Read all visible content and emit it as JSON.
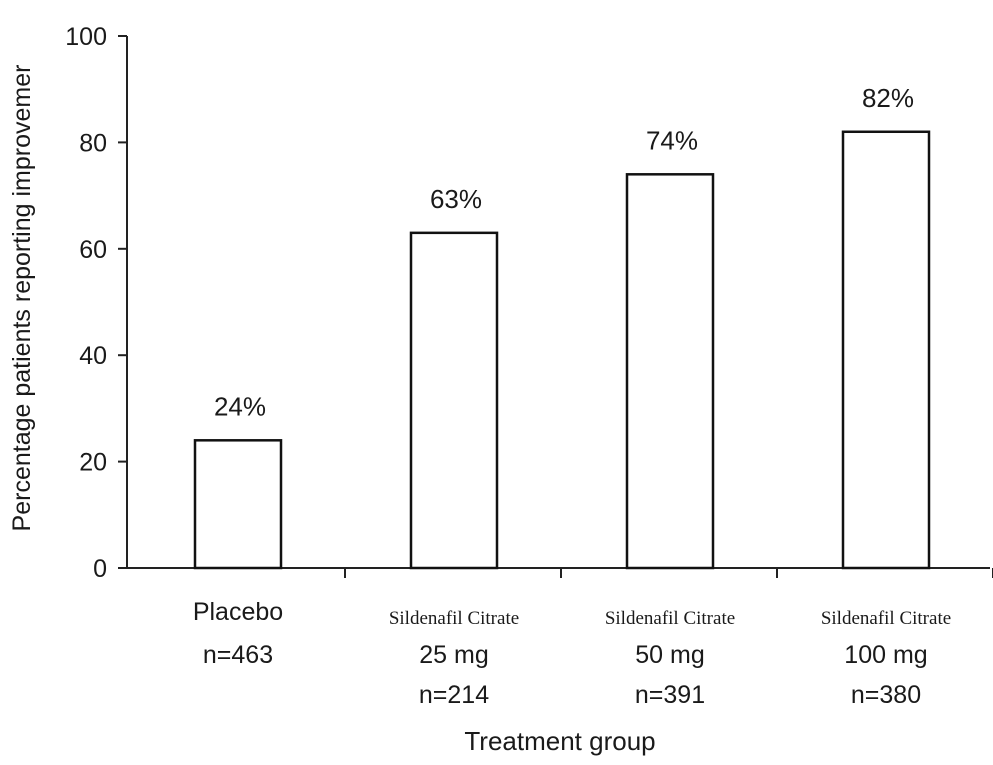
{
  "chart_data": {
    "type": "bar",
    "title": "",
    "xlabel": "Treatment group",
    "ylabel": "Percentage patients reporting improvemer",
    "ylim": [
      0,
      100
    ],
    "yticks": [
      0,
      20,
      40,
      60,
      80,
      100
    ],
    "grid": false,
    "categories": [
      {
        "drug": "",
        "dose": "Placebo",
        "n": "n=463"
      },
      {
        "drug": "Sildenafil Citrate",
        "dose": "25 mg",
        "n": "n=214"
      },
      {
        "drug": "Sildenafil Citrate",
        "dose": "50 mg",
        "n": "n=391"
      },
      {
        "drug": "Sildenafil Citrate",
        "dose": "100 mg",
        "n": "n=380"
      }
    ],
    "values": [
      24,
      63,
      74,
      82
    ],
    "data_labels": [
      "24%",
      "63%",
      "74%",
      "82%"
    ],
    "bar_fill": "#ffffff",
    "bar_stroke": "#111111"
  }
}
